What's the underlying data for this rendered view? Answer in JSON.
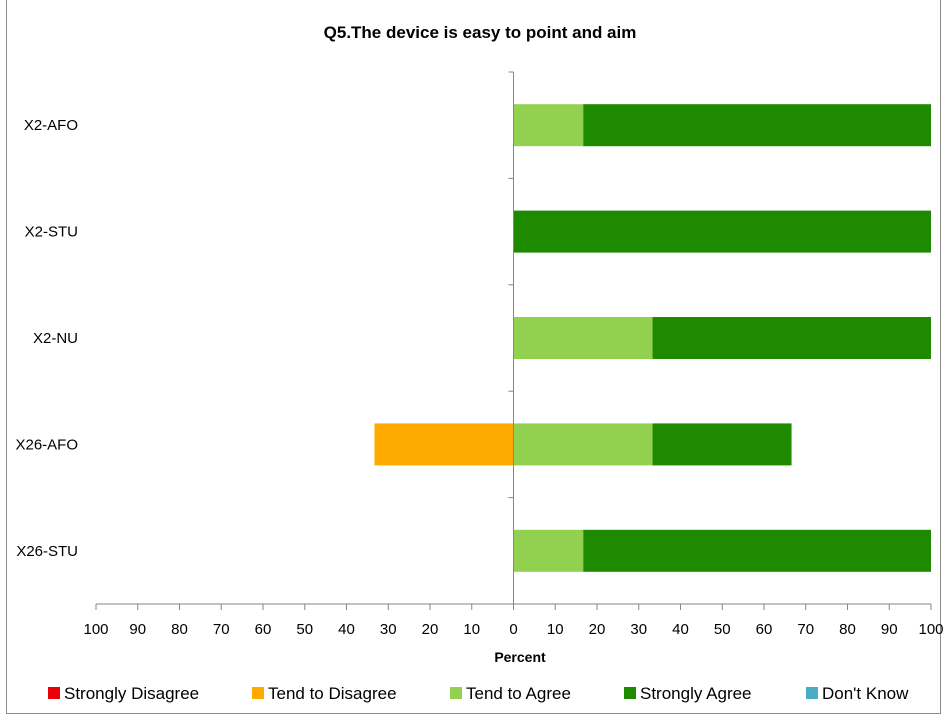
{
  "chart_data": {
    "type": "bar",
    "orientation": "horizontal",
    "stacked": true,
    "diverging": true,
    "title": "Q5.The device is easy to point and aim",
    "xlabel": "Percent",
    "ylabel": "",
    "categories": [
      "X2-AFO",
      "X2-STU",
      "X2-NU",
      "X26-AFO",
      "X26-STU"
    ],
    "xlim": [
      -100,
      100
    ],
    "xticks": [
      -100,
      -90,
      -80,
      -70,
      -60,
      -50,
      -40,
      -30,
      -20,
      -10,
      0,
      10,
      20,
      30,
      40,
      50,
      60,
      70,
      80,
      90,
      100
    ],
    "xtick_labels": [
      "100",
      "90",
      "80",
      "70",
      "60",
      "50",
      "40",
      "30",
      "20",
      "10",
      "0",
      "10",
      "20",
      "30",
      "40",
      "50",
      "60",
      "70",
      "80",
      "90",
      "100"
    ],
    "legend_position": "bottom",
    "grid": false,
    "series": [
      {
        "name": "Strongly Disagree",
        "side": "negative",
        "color": "#e8000b",
        "values": [
          0,
          0,
          0,
          0,
          0
        ]
      },
      {
        "name": "Tend to Disagree",
        "side": "negative",
        "color": "#ffaa00",
        "values": [
          0,
          0,
          0,
          33.3,
          0
        ]
      },
      {
        "name": "Tend to Agree",
        "side": "positive",
        "color": "#92d050",
        "values": [
          16.7,
          0,
          33.3,
          33.3,
          16.7
        ]
      },
      {
        "name": "Strongly Agree",
        "side": "positive",
        "color": "#1e8a00",
        "values": [
          83.3,
          100,
          66.7,
          33.3,
          83.3
        ]
      },
      {
        "name": "Don't Know",
        "side": "positive",
        "color": "#4bacc6",
        "values": [
          0,
          0,
          0,
          0,
          0
        ]
      }
    ]
  }
}
